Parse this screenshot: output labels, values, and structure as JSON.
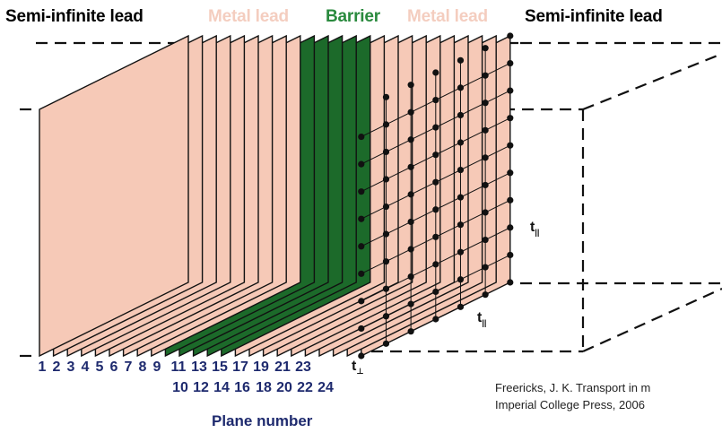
{
  "labels": {
    "left_lead": "Semi-infinite lead",
    "metal_left": "Metal lead",
    "barrier": "Barrier",
    "metal_right": "Metal lead",
    "right_lead": "Semi-infinite lead",
    "axis_title": "Plane number",
    "hop_perp": "t",
    "hop_perp_sub": "⊥",
    "hop_par_vertical": "t",
    "hop_par_vertical_sub": "||",
    "hop_par_diag": "t",
    "hop_par_diag_sub": "||"
  },
  "plane_numbers_top": [
    "1",
    "2",
    "3",
    "4",
    "5",
    "6",
    "7",
    "8",
    "9",
    "11",
    "13",
    "15",
    "17",
    "19",
    "21",
    "23"
  ],
  "plane_numbers_bottom": [
    "10",
    "12",
    "14",
    "16",
    "18",
    "20",
    "22",
    "24"
  ],
  "plane_types": [
    "metal",
    "metal",
    "metal",
    "metal",
    "metal",
    "metal",
    "metal",
    "metal",
    "metal",
    "barrier",
    "barrier",
    "barrier",
    "barrier",
    "barrier",
    "metal",
    "metal",
    "metal",
    "metal",
    "metal",
    "metal",
    "metal",
    "metal",
    "metal",
    "metal"
  ],
  "citation": {
    "line1": "Freericks, J. K. Transport in m",
    "line2": "Imperial College Press, 2006"
  },
  "colors": {
    "metal": "#f6c9b7",
    "barrier": "#1c6a2a",
    "metal_label": "#f4cdbf",
    "barrier_label": "#2a8a3e",
    "dot": "#111111",
    "line": "#111111"
  }
}
